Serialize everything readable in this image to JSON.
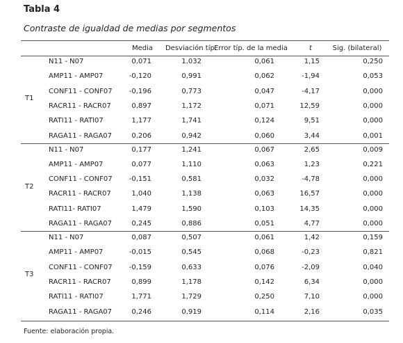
{
  "title": "Tabla 4",
  "subtitle": "Contraste de igualdad de medias por segmentos",
  "header": [
    "Media",
    "Desviación típ.",
    "Error típ. de la media",
    "t",
    "Sig. (bilateral)"
  ],
  "groups": [
    {
      "label": "T1",
      "rows": [
        [
          "N11 - N07",
          "0,071",
          "1,032",
          "0,061",
          "1,15",
          "0,250"
        ],
        [
          "AMP11 - AMP07",
          "-0,120",
          "0,991",
          "0,062",
          "-1,94",
          "0,053"
        ],
        [
          "CONF11 - CONF07",
          "-0,196",
          "0,773",
          "0,047",
          "-4,17",
          "0,000"
        ],
        [
          "RACR11 - RACR07",
          "0,897",
          "1,172",
          "0,071",
          "12,59",
          "0,000"
        ],
        [
          "RATI11 - RATI07",
          "1,177",
          "1,741",
          "0,124",
          "9,51",
          "0,000"
        ],
        [
          "RAGA11 - RAGA07",
          "0,206",
          "0,942",
          "0,060",
          "3,44",
          "0,001"
        ]
      ]
    },
    {
      "label": "T2",
      "rows": [
        [
          "N11 - N07",
          "0,177",
          "1,241",
          "0,067",
          "2,65",
          "0,009"
        ],
        [
          "AMP11 - AMP07",
          "0,077",
          "1,110",
          "0,063",
          "1,23",
          "0,221"
        ],
        [
          "CONF11 - CONF07",
          "-0,151",
          "0,581",
          "0,032",
          "-4,78",
          "0,000"
        ],
        [
          "RACR11 - RACR07",
          "1,040",
          "1,138",
          "0,063",
          "16,57",
          "0,000"
        ],
        [
          "RATI11- RATI07",
          "1,479",
          "1,590",
          "0,103",
          "14,35",
          "0,000"
        ],
        [
          "RAGA11 - RAGA07",
          "0,245",
          "0,886",
          "0,051",
          "4,77",
          "0,000"
        ]
      ]
    },
    {
      "label": "T3",
      "rows": [
        [
          "N11 - N07",
          "0,087",
          "0,507",
          "0,061",
          "1,42",
          "0,159"
        ],
        [
          "AMP11 - AMP07",
          "-0,015",
          "0,545",
          "0,068",
          "-0,23",
          "0,821"
        ],
        [
          "CONF11 - CONF07",
          "-0,159",
          "0,633",
          "0,076",
          "-2,09",
          "0,040"
        ],
        [
          "RACR11 - RACR07",
          "0,899",
          "1,178",
          "0,142",
          "6,34",
          "0,000"
        ],
        [
          "RATI11 - RATI07",
          "1,771",
          "1,729",
          "0,250",
          "7,10",
          "0,000"
        ],
        [
          "RAGA11 - RAGA07",
          "0,246",
          "0,919",
          "0,114",
          "2,16",
          "0,035"
        ]
      ]
    }
  ],
  "footer": "Fuente: elaboración propia."
}
